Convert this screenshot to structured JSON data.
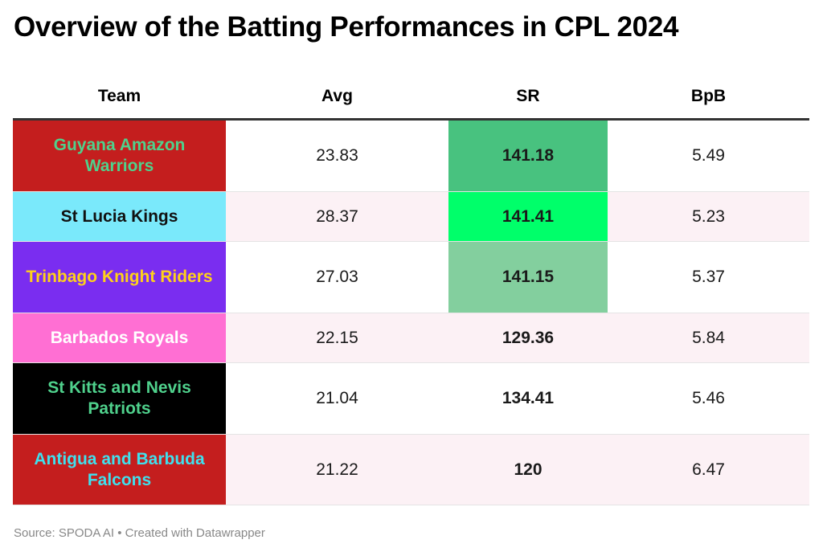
{
  "title": "Overview of the Batting Performances in CPL 2024",
  "source_note": "Source: SPODA AI • Created with Datawrapper",
  "chart_data": {
    "type": "table",
    "columns": [
      "Team",
      "Avg",
      "SR",
      "BpB"
    ],
    "rows": [
      {
        "team": "Guyana Amazon Warriors",
        "avg": "23.83",
        "sr": "141.18",
        "bpb": "5.49",
        "team_bg": "#c41e1e",
        "team_color": "#4fd18c",
        "sr_bg": "#48c27f",
        "height": 88
      },
      {
        "team": "St Lucia Kings",
        "avg": "28.37",
        "sr": "141.41",
        "bpb": "5.23",
        "team_bg": "#7ae9fb",
        "team_color": "#111111",
        "sr_bg": "#00ff6a",
        "height": 61
      },
      {
        "team": "Trinbago Knight Riders",
        "avg": "27.03",
        "sr": "141.15",
        "bpb": "5.37",
        "team_bg": "#7a2df0",
        "team_color": "#ffd11a",
        "sr_bg": "#83cf9e",
        "height": 88
      },
      {
        "team": "Barbados Royals",
        "avg": "22.15",
        "sr": "129.36",
        "bpb": "5.84",
        "team_bg": "#ff6fd3",
        "team_color": "#ffffff",
        "sr_bg": "",
        "height": 61
      },
      {
        "team": "St Kitts and Nevis Patriots",
        "avg": "21.04",
        "sr": "134.41",
        "bpb": "5.46",
        "team_bg": "#000000",
        "team_color": "#4fd18c",
        "sr_bg": "",
        "height": 88
      },
      {
        "team": "Antigua and Barbuda Falcons",
        "avg": "21.22",
        "sr": "120",
        "bpb": "6.47",
        "team_bg": "#c41e1e",
        "team_color": "#3fe0ee",
        "sr_bg": "",
        "height": 87
      }
    ]
  }
}
